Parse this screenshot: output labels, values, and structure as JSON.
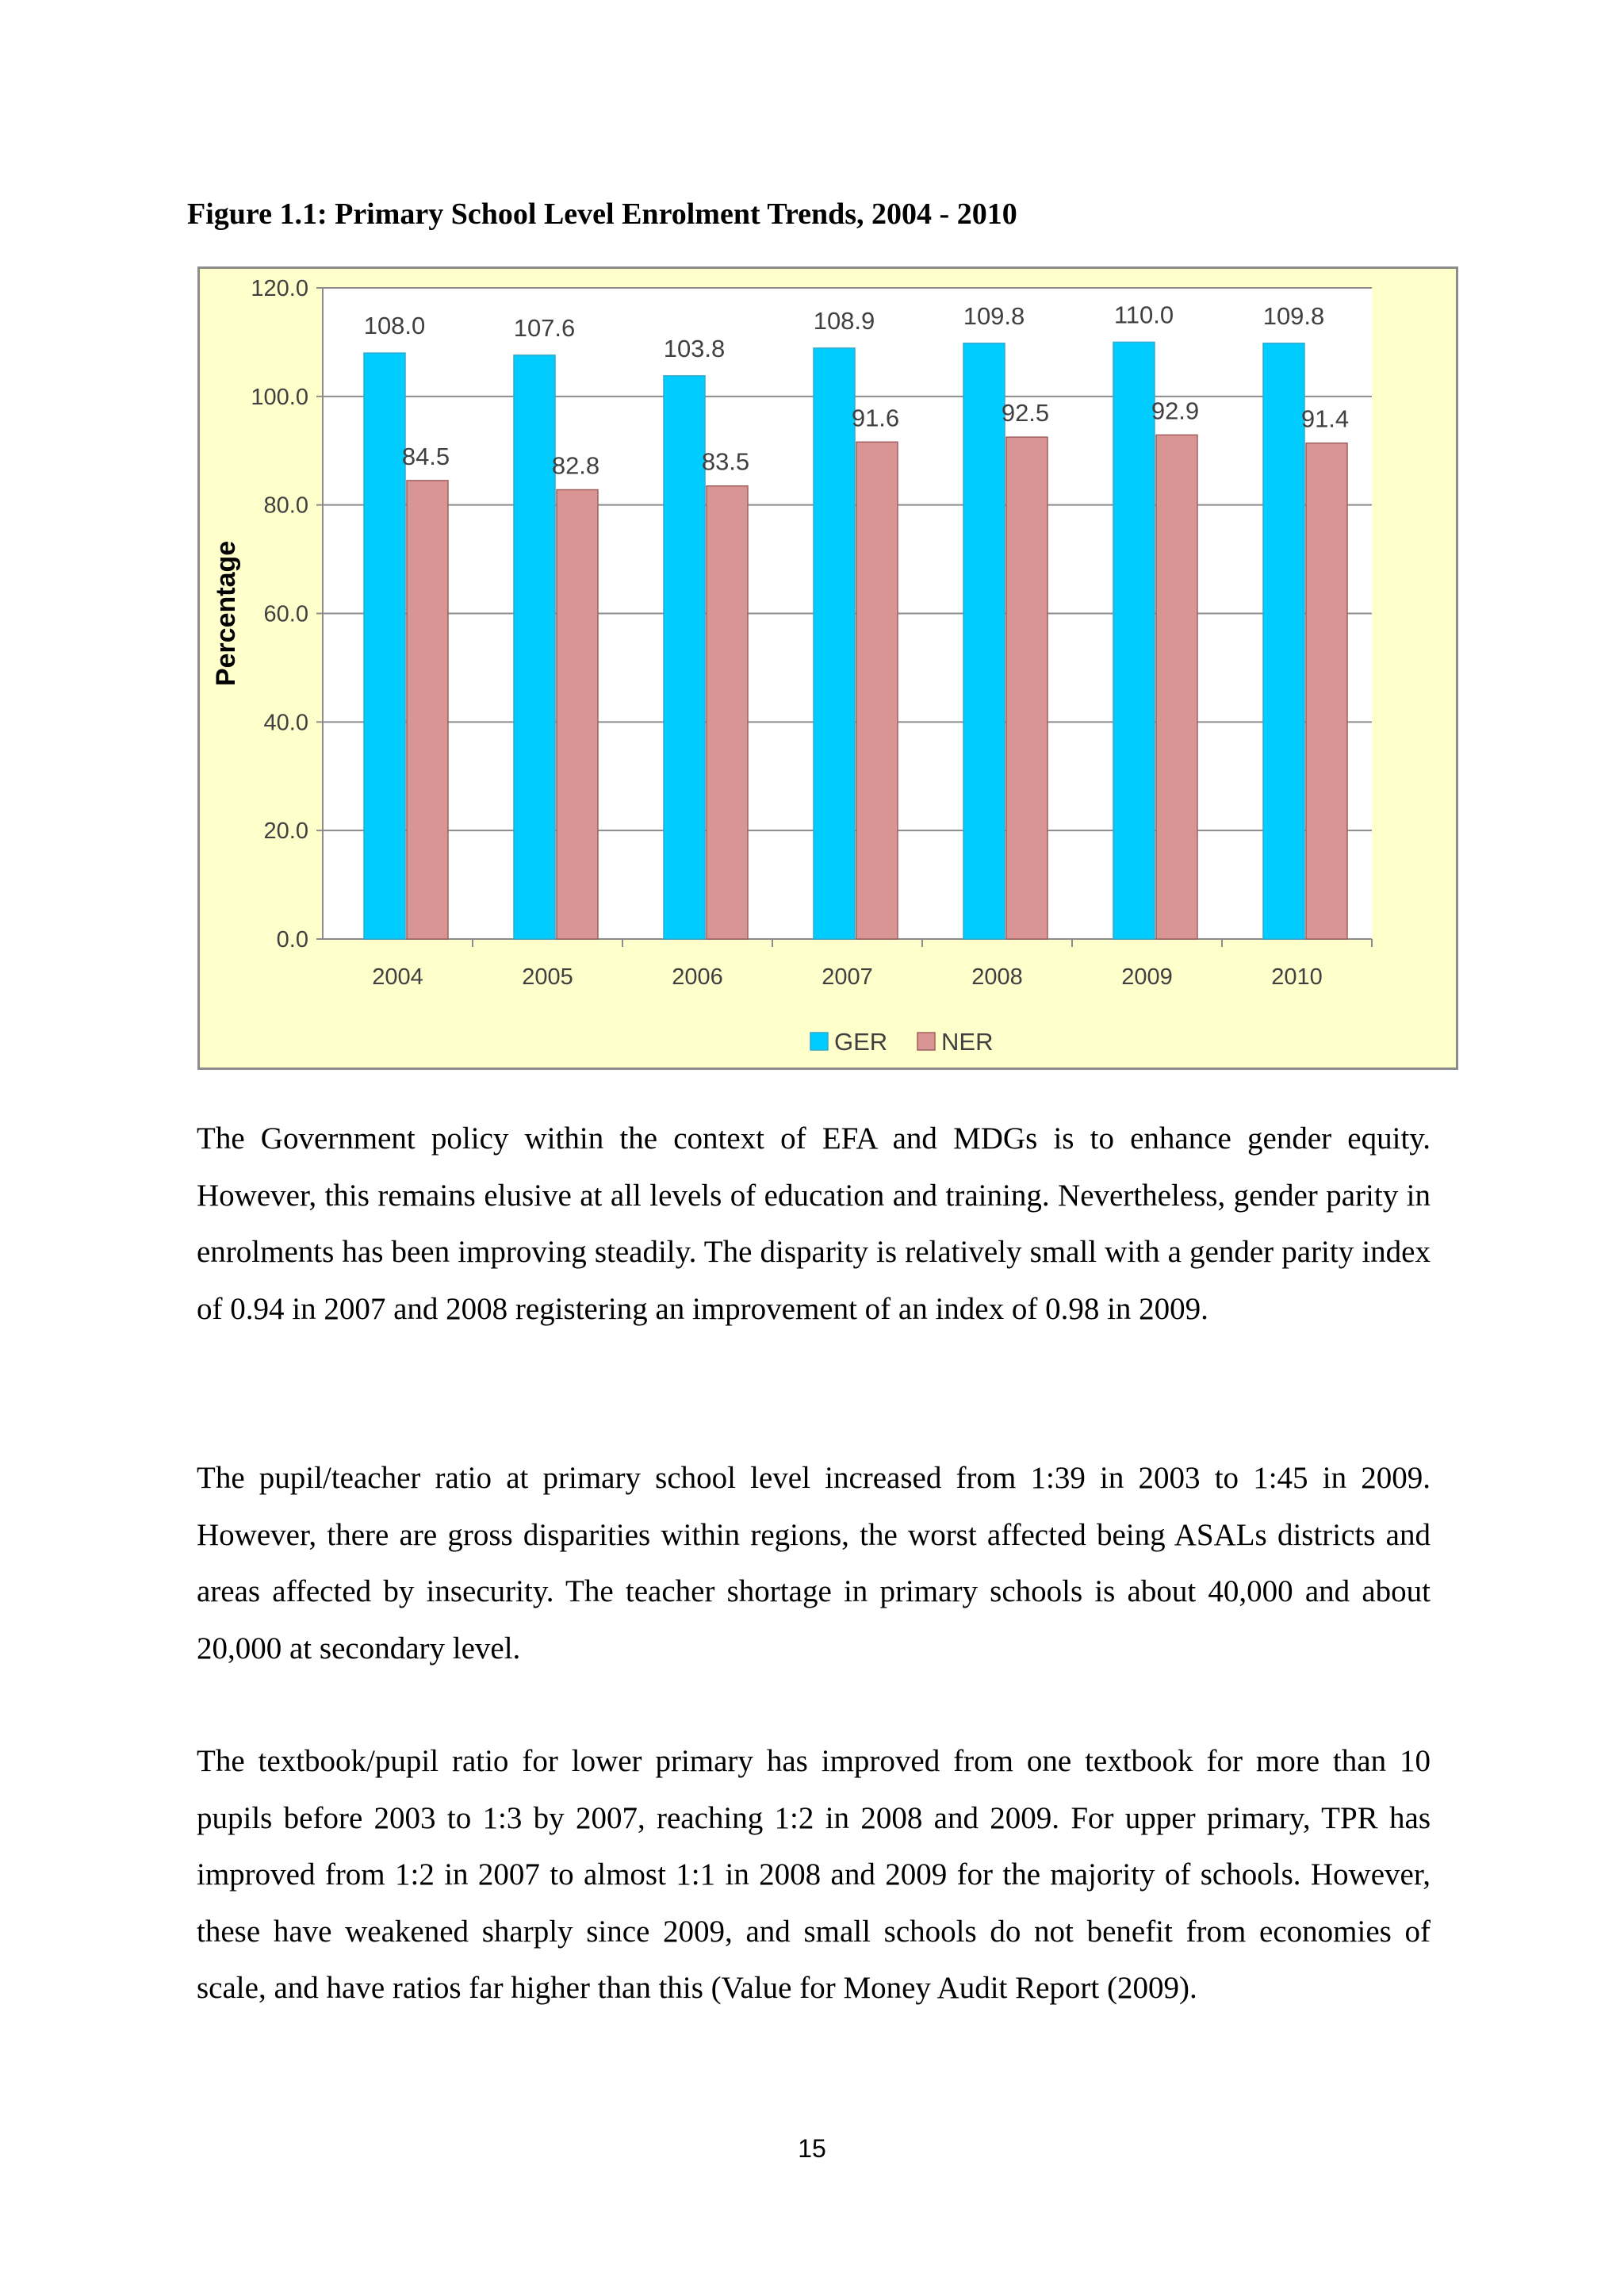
{
  "figure": {
    "caption": "Figure 1.1: Primary School Level Enrolment Trends, 2004 - 2010"
  },
  "chart_data": {
    "type": "bar",
    "title": "",
    "xlabel": "",
    "ylabel": "Percentage",
    "ylim": [
      0,
      120
    ],
    "yticks": [
      "0.0",
      "20.0",
      "40.0",
      "60.0",
      "80.0",
      "100.0",
      "120.0"
    ],
    "categories": [
      "2004",
      "2005",
      "2006",
      "2007",
      "2008",
      "2009",
      "2010"
    ],
    "series": [
      {
        "name": "GER",
        "color": "#00ccff",
        "values": [
          108.0,
          107.6,
          103.8,
          108.9,
          109.8,
          110.0,
          109.8
        ],
        "labels": [
          "108.0",
          "107.6",
          "103.8",
          "108.9",
          "109.8",
          "110.0",
          "109.8"
        ]
      },
      {
        "name": "NER",
        "color": "#d99594",
        "values": [
          84.5,
          82.8,
          83.5,
          91.6,
          92.5,
          92.9,
          91.4
        ],
        "labels": [
          "84.5",
          "82.8",
          "83.5",
          "91.6",
          "92.5",
          "92.9",
          "91.4"
        ]
      }
    ],
    "grid": true,
    "legend": "bottom-center",
    "background": "#ffffcc"
  },
  "paragraphs": [
    "The Government policy within the context of EFA and MDGs is to enhance gender equity. However, this remains elusive at all levels of education and training. Nevertheless, gender parity in enrolments has been improving steadily. The disparity is relatively small with a gender parity index of 0.94 in 2007 and 2008 registering an improvement of an index of 0.98 in 2009.",
    "The pupil/teacher ratio at primary school level increased from 1:39 in 2003 to 1:45 in 2009. However, there are gross disparities within regions, the worst affected being ASALs districts and areas affected by insecurity. The teacher shortage in primary schools is about 40,000 and about 20,000 at secondary level.",
    "The textbook/pupil ratio for lower primary has improved from one textbook for more than 10 pupils before 2003 to 1:3 by 2007, reaching 1:2 in 2008 and 2009. For upper primary, TPR has improved from 1:2 in 2007 to almost 1:1 in 2008 and 2009 for the majority of schools. However, these have weakened sharply since 2009, and small schools do not benefit from economies of scale, and have ratios far higher than this (Value for Money Audit Report (2009)."
  ],
  "page_number": "15"
}
